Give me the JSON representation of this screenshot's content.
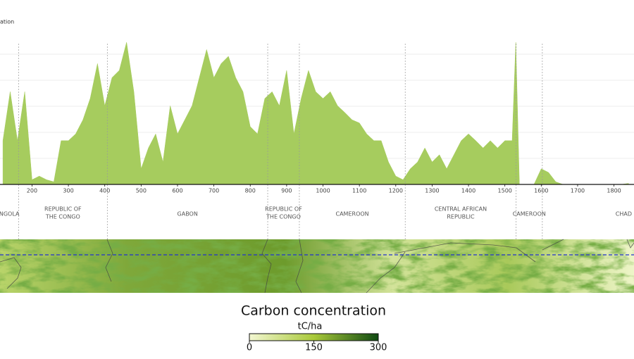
{
  "chart_data": {
    "type": "area",
    "y_label": "ation",
    "x": [
      120,
      140,
      160,
      180,
      200,
      220,
      240,
      260,
      280,
      300,
      320,
      340,
      360,
      380,
      400,
      420,
      440,
      460,
      480,
      500,
      520,
      540,
      560,
      580,
      600,
      620,
      640,
      660,
      680,
      700,
      720,
      740,
      760,
      780,
      800,
      820,
      840,
      860,
      880,
      900,
      920,
      940,
      960,
      980,
      1000,
      1020,
      1040,
      1060,
      1080,
      1100,
      1120,
      1140,
      1160,
      1180,
      1200,
      1220,
      1240,
      1260,
      1280,
      1300,
      1320,
      1340,
      1360,
      1380,
      1400,
      1420,
      1440,
      1460,
      1480,
      1500,
      1520,
      1530,
      1540,
      1560,
      1580,
      1600,
      1620,
      1640,
      1660,
      1680,
      1700,
      1720,
      1740,
      1760,
      1780,
      1800,
      1820,
      1840
    ],
    "series": [
      {
        "color": "#a6cc5e",
        "values": [
          84,
          178,
          84,
          178,
          9,
          16,
          9,
          5,
          84,
          84,
          97,
          124,
          165,
          232,
          151,
          205,
          219,
          273,
          178,
          30,
          70,
          97,
          43,
          151,
          97,
          124,
          151,
          205,
          259,
          205,
          232,
          246,
          205,
          178,
          111,
          97,
          165,
          178,
          151,
          219,
          97,
          165,
          219,
          178,
          165,
          178,
          151,
          138,
          124,
          118,
          97,
          84,
          84,
          43,
          16,
          9,
          30,
          43,
          70,
          43,
          57,
          30,
          57,
          84,
          97,
          84,
          70,
          84,
          70,
          84,
          84,
          273,
          0,
          0,
          0,
          30,
          23,
          5,
          0,
          0,
          0,
          0,
          0,
          0,
          0,
          0,
          0,
          2
        ]
      }
    ],
    "xlim": [
      112,
      1855
    ],
    "xticks": [
      200,
      300,
      400,
      500,
      600,
      700,
      800,
      900,
      1000,
      1100,
      1200,
      1300,
      1400,
      1500,
      1600,
      1700,
      1800
    ],
    "ylim": [
      0,
      300
    ],
    "yticks": [
      50,
      100,
      150,
      200,
      250
    ],
    "grid": true,
    "borders": [
      163,
      407,
      848,
      935,
      1226,
      1531,
      1603
    ],
    "countries": [
      [
        "NGOLA"
      ],
      [
        "REPUBLIC OF",
        "THE CONGO"
      ],
      [
        "GABON"
      ],
      [
        "REPUBLIC OF",
        "THE CONGO"
      ],
      [
        "CAMEROON"
      ],
      [
        "CENTRAL AFRICAN",
        "REPUBLIC"
      ],
      [
        "CAMEROON"
      ],
      [
        "CHAD"
      ]
    ],
    "colorbar": {
      "title": "Carbon concentration",
      "unit": "tC/ha",
      "range": [
        0,
        300
      ],
      "ticks": [
        0,
        150,
        300
      ],
      "colors": [
        "#f3f7d2",
        "#a9c93a",
        "#0f4a12"
      ]
    }
  }
}
